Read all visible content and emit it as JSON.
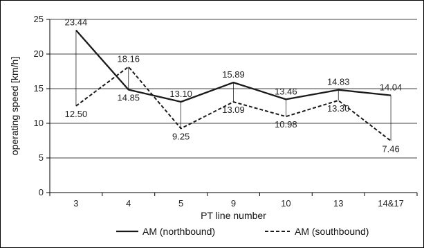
{
  "chart_data": {
    "type": "line",
    "title": "",
    "xlabel": "PT line number",
    "ylabel": "operating speed [km/h]",
    "categories": [
      "3",
      "4",
      "5",
      "9",
      "10",
      "13",
      "14&17"
    ],
    "ylim": [
      0,
      25
    ],
    "yticks": [
      0,
      5,
      10,
      15,
      20,
      25
    ],
    "grid": true,
    "legend_position": "bottom",
    "series": [
      {
        "name": "AM (northbound)",
        "style": "solid",
        "color": "#1a1a1a",
        "values": [
          23.44,
          14.85,
          13.1,
          15.89,
          13.46,
          14.83,
          14.04
        ],
        "labels": [
          "23.44",
          "14.85",
          "13.10",
          "15.89",
          "13.46",
          "14.83",
          "14.04"
        ]
      },
      {
        "name": "AM (southbound)",
        "style": "dashed",
        "color": "#1a1a1a",
        "values": [
          12.5,
          18.16,
          9.25,
          13.09,
          10.98,
          13.3,
          7.46
        ],
        "labels": [
          "12.50",
          "18.16",
          "9.25",
          "13.09",
          "10.98",
          "13.30",
          "7.46"
        ]
      }
    ]
  }
}
